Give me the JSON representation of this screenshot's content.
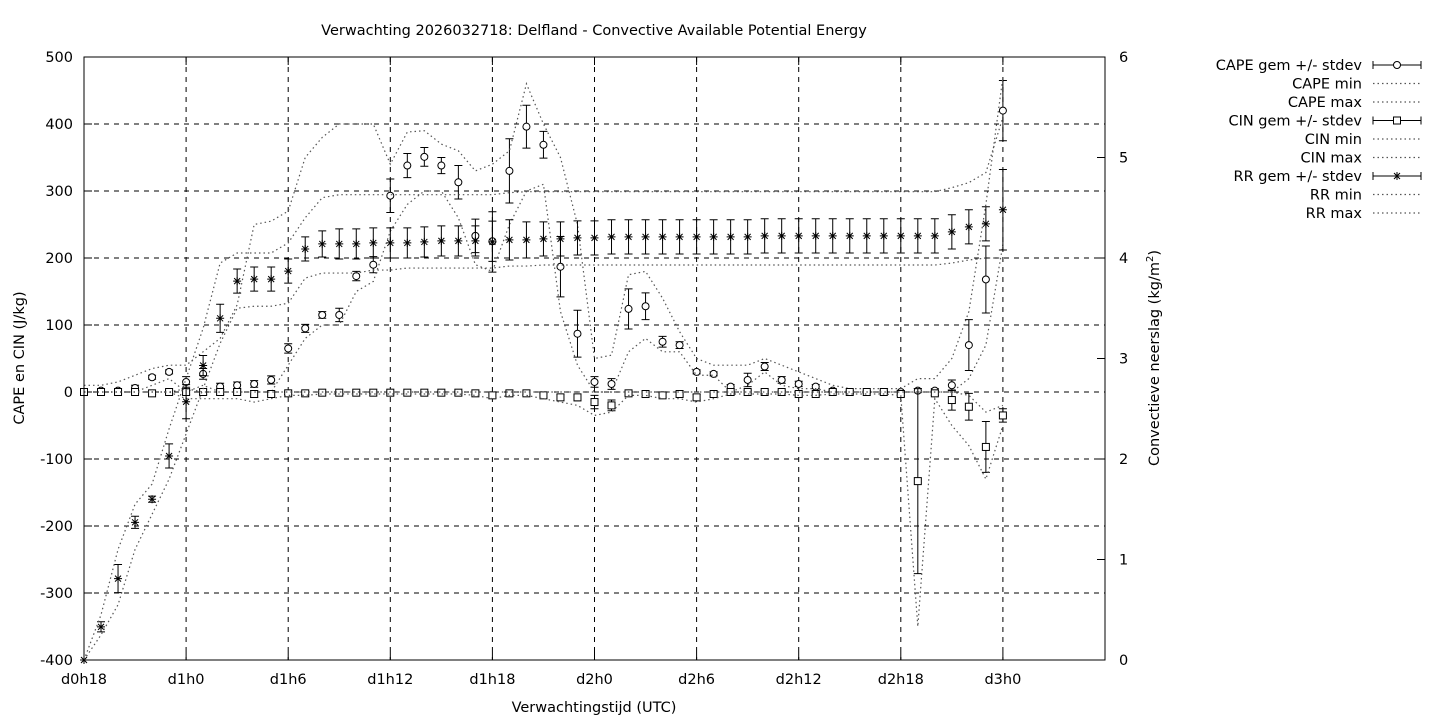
{
  "chart_data": {
    "type": "line",
    "title": "Verwachting 2026032718: Delfland - Convective Available Potential Energy",
    "xlabel": "Verwachtingstijd (UTC)",
    "ylabel": "CAPE en CIN (J/kg)",
    "y2label_main": "Convectieve neerslag (kg/m",
    "y2label_sup": "2",
    "y2label_close": ")",
    "xlim": [
      18,
      78
    ],
    "ylim": [
      -400,
      500
    ],
    "y2lim": [
      0,
      6
    ],
    "grid": true,
    "legend_position": "outside-right",
    "x_ticks": [
      {
        "value": 18,
        "label": "d0h18"
      },
      {
        "value": 24,
        "label": "d1h0"
      },
      {
        "value": 30,
        "label": "d1h6"
      },
      {
        "value": 36,
        "label": "d1h12"
      },
      {
        "value": 42,
        "label": "d1h18"
      },
      {
        "value": 48,
        "label": "d2h0"
      },
      {
        "value": 54,
        "label": "d2h6"
      },
      {
        "value": 60,
        "label": "d2h12"
      },
      {
        "value": 66,
        "label": "d2h18"
      },
      {
        "value": 72,
        "label": "d3h0"
      }
    ],
    "y_ticks": [
      {
        "value": 500,
        "label": "500"
      },
      {
        "value": 400,
        "label": "400"
      },
      {
        "value": 300,
        "label": "300"
      },
      {
        "value": 200,
        "label": "200"
      },
      {
        "value": 100,
        "label": "100"
      },
      {
        "value": 0,
        "label": "0"
      },
      {
        "value": -100,
        "label": "-100"
      },
      {
        "value": -200,
        "label": "-200"
      },
      {
        "value": -300,
        "label": "-300"
      },
      {
        "value": -400,
        "label": "-400"
      }
    ],
    "y2_ticks": [
      {
        "value": 6,
        "label": "6"
      },
      {
        "value": 5,
        "label": "5"
      },
      {
        "value": 4,
        "label": "4"
      },
      {
        "value": 3,
        "label": "3"
      },
      {
        "value": 2,
        "label": "2"
      },
      {
        "value": 1,
        "label": "1"
      },
      {
        "value": 0,
        "label": "0"
      }
    ],
    "x": [
      18,
      19,
      20,
      21,
      22,
      23,
      24,
      25,
      26,
      27,
      28,
      29,
      30,
      31,
      32,
      33,
      34,
      35,
      36,
      37,
      38,
      39,
      40,
      41,
      42,
      43,
      44,
      45,
      46,
      47,
      48,
      49,
      50,
      51,
      52,
      53,
      54,
      55,
      56,
      57,
      58,
      59,
      60,
      61,
      62,
      63,
      64,
      65,
      66,
      67,
      68,
      69,
      70,
      71,
      72
    ],
    "series": [
      {
        "name": "CAPE gem +/- stdev",
        "axis": "y",
        "marker": "circle",
        "values": [
          0,
          2,
          2,
          6,
          22,
          30,
          15,
          27,
          8,
          10,
          12,
          18,
          65,
          95,
          115,
          115,
          173,
          190,
          293,
          338,
          351,
          338,
          313,
          233,
          225,
          330,
          396,
          369,
          187,
          87,
          15,
          12,
          124,
          128,
          75,
          70,
          30,
          27,
          8,
          18,
          38,
          18,
          12,
          8,
          2,
          0,
          0,
          0,
          0,
          2,
          2,
          10,
          70,
          168,
          420
        ],
        "stdev": [
          5,
          3,
          3,
          4,
          3,
          3,
          8,
          8,
          5,
          5,
          5,
          6,
          7,
          6,
          5,
          10,
          7,
          12,
          25,
          18,
          14,
          12,
          25,
          25,
          30,
          48,
          32,
          20,
          45,
          35,
          8,
          8,
          30,
          20,
          8,
          5,
          3,
          3,
          3,
          10,
          6,
          5,
          4,
          3,
          2,
          2,
          2,
          2,
          2,
          3,
          3,
          8,
          38,
          50,
          45
        ]
      },
      {
        "name": "CAPE min",
        "axis": "y",
        "values": [
          0,
          0,
          0,
          0,
          10,
          20,
          0,
          10,
          0,
          0,
          0,
          0,
          40,
          80,
          100,
          100,
          150,
          165,
          240,
          280,
          300,
          300,
          260,
          190,
          180,
          250,
          300,
          310,
          120,
          40,
          0,
          0,
          60,
          80,
          60,
          60,
          25,
          25,
          0,
          10,
          30,
          10,
          5,
          5,
          0,
          0,
          0,
          0,
          0,
          0,
          0,
          0,
          20,
          70,
          220
        ]
      },
      {
        "name": "CAPE max",
        "axis": "y",
        "values": [
          10,
          10,
          15,
          25,
          35,
          40,
          40,
          60,
          80,
          130,
          250,
          255,
          270,
          350,
          380,
          400,
          400,
          400,
          340,
          388,
          390,
          370,
          360,
          330,
          340,
          360,
          460,
          400,
          350,
          250,
          50,
          55,
          175,
          180,
          140,
          90,
          50,
          40,
          40,
          40,
          50,
          40,
          30,
          20,
          10,
          5,
          5,
          5,
          5,
          20,
          20,
          50,
          120,
          280,
          470
        ]
      },
      {
        "name": "CIN gem +/- stdev",
        "axis": "y",
        "marker": "square",
        "values": [
          0,
          0,
          0,
          0,
          -2,
          0,
          0,
          0,
          0,
          0,
          -3,
          -3,
          -2,
          -2,
          -1,
          -1,
          -1,
          -1,
          -1,
          -1,
          -1,
          -1,
          -1,
          -2,
          -5,
          -2,
          -2,
          -5,
          -8,
          -8,
          -15,
          -20,
          -2,
          -3,
          -5,
          -3,
          -8,
          -3,
          0,
          0,
          0,
          0,
          -3,
          -3,
          0,
          0,
          0,
          0,
          -3,
          -133,
          -2,
          -12,
          -22,
          -82,
          -35
        ],
        "stdev": [
          3,
          2,
          2,
          2,
          2,
          2,
          4,
          4,
          4,
          3,
          5,
          3,
          2,
          2,
          1,
          1,
          1,
          1,
          1,
          1,
          1,
          1,
          1,
          2,
          4,
          2,
          2,
          3,
          4,
          5,
          10,
          8,
          3,
          3,
          3,
          3,
          4,
          3,
          2,
          2,
          2,
          2,
          2,
          2,
          1,
          1,
          1,
          1,
          3,
          138,
          3,
          15,
          20,
          38,
          10
        ]
      },
      {
        "name": "CIN min",
        "axis": "y",
        "values": [
          0,
          0,
          0,
          0,
          0,
          0,
          -10,
          -10,
          -10,
          -10,
          -15,
          -10,
          -5,
          -5,
          -3,
          -3,
          -3,
          -3,
          -3,
          -3,
          -3,
          -3,
          -3,
          -5,
          -10,
          -5,
          -5,
          -10,
          -15,
          -20,
          -35,
          -30,
          -5,
          -5,
          -10,
          -10,
          -15,
          -10,
          -3,
          -3,
          -3,
          -3,
          -5,
          -5,
          -3,
          -3,
          -3,
          -3,
          -5,
          -350,
          -10,
          -50,
          -80,
          -130,
          -50
        ]
      },
      {
        "name": "CIN max",
        "axis": "y",
        "values": [
          0,
          0,
          0,
          0,
          0,
          0,
          5,
          0,
          0,
          0,
          0,
          0,
          0,
          0,
          0,
          0,
          0,
          0,
          0,
          0,
          0,
          0,
          0,
          0,
          0,
          0,
          0,
          0,
          0,
          0,
          0,
          0,
          0,
          0,
          0,
          0,
          0,
          0,
          0,
          0,
          0,
          0,
          0,
          0,
          0,
          0,
          0,
          0,
          0,
          0,
          0,
          0,
          -5,
          -30,
          -20
        ]
      },
      {
        "name": "RR gem +/- stdev",
        "axis": "y2",
        "marker": "star",
        "values": [
          0,
          0.33,
          0.81,
          1.37,
          1.6,
          2.03,
          2.57,
          2.93,
          3.4,
          3.77,
          3.79,
          3.79,
          3.87,
          4.09,
          4.14,
          4.14,
          4.14,
          4.15,
          4.15,
          4.15,
          4.16,
          4.17,
          4.17,
          4.17,
          4.16,
          4.18,
          4.18,
          4.19,
          4.19,
          4.2,
          4.2,
          4.21,
          4.21,
          4.21,
          4.21,
          4.21,
          4.21,
          4.21,
          4.21,
          4.21,
          4.22,
          4.22,
          4.22,
          4.22,
          4.22,
          4.22,
          4.22,
          4.22,
          4.22,
          4.22,
          4.22,
          4.26,
          4.31,
          4.34,
          4.48
        ],
        "stdev": [
          0,
          0.05,
          0.14,
          0.06,
          0.03,
          0.12,
          0.17,
          0.1,
          0.14,
          0.12,
          0.12,
          0.12,
          0.12,
          0.12,
          0.13,
          0.15,
          0.15,
          0.15,
          0.15,
          0.15,
          0.15,
          0.15,
          0.15,
          0.15,
          0.3,
          0.2,
          0.18,
          0.17,
          0.17,
          0.17,
          0.17,
          0.17,
          0.17,
          0.17,
          0.17,
          0.17,
          0.17,
          0.17,
          0.17,
          0.17,
          0.17,
          0.17,
          0.17,
          0.17,
          0.17,
          0.17,
          0.17,
          0.17,
          0.17,
          0.17,
          0.17,
          0.17,
          0.17,
          0.17,
          0.4
        ]
      },
      {
        "name": "RR min",
        "axis": "y2",
        "values": [
          0,
          0.25,
          0.55,
          1.1,
          1.45,
          1.8,
          2.25,
          2.7,
          3.15,
          3.5,
          3.52,
          3.52,
          3.55,
          3.8,
          3.85,
          3.85,
          3.85,
          3.88,
          3.88,
          3.9,
          3.9,
          3.9,
          3.9,
          3.9,
          3.9,
          3.92,
          3.92,
          3.93,
          3.93,
          3.93,
          3.93,
          3.93,
          3.93,
          3.93,
          3.93,
          3.93,
          3.93,
          3.93,
          3.93,
          3.93,
          3.93,
          3.93,
          3.93,
          3.93,
          3.93,
          3.93,
          3.93,
          3.93,
          3.93,
          3.93,
          3.93,
          3.95,
          3.98,
          4.0,
          4.0
        ]
      },
      {
        "name": "RR max",
        "axis": "y2",
        "values": [
          0,
          0.45,
          1.1,
          1.55,
          1.75,
          2.3,
          2.8,
          3.3,
          3.95,
          4.05,
          4.05,
          4.05,
          4.15,
          4.4,
          4.6,
          4.63,
          4.63,
          4.63,
          4.63,
          4.63,
          4.63,
          4.63,
          4.63,
          4.63,
          4.63,
          4.65,
          4.66,
          4.66,
          4.66,
          4.66,
          4.66,
          4.66,
          4.66,
          4.66,
          4.66,
          4.66,
          4.66,
          4.66,
          4.66,
          4.66,
          4.66,
          4.66,
          4.66,
          4.66,
          4.66,
          4.66,
          4.66,
          4.66,
          4.66,
          4.66,
          4.66,
          4.7,
          4.75,
          4.85,
          5.4
        ]
      }
    ]
  }
}
